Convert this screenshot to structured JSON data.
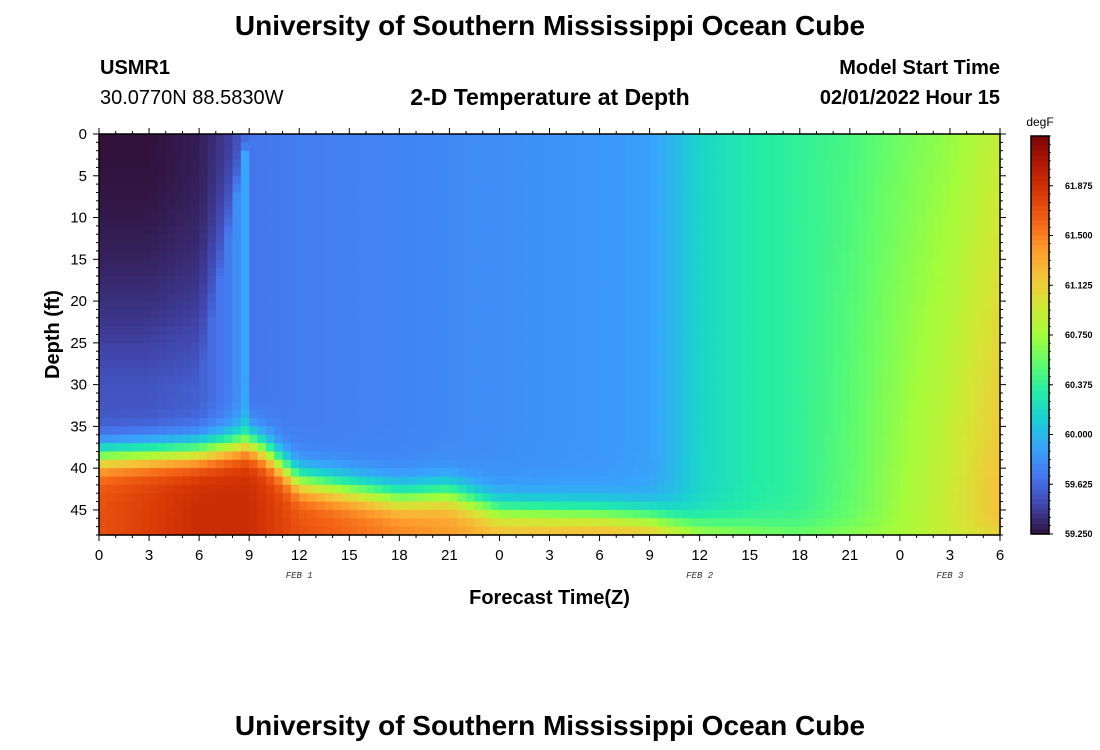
{
  "header": {
    "title": "University of Southern Mississippi Ocean Cube",
    "station_id": "USMR1",
    "coordinates": "30.0770N  88.5830W",
    "plot_title": "2-D Temperature at Depth",
    "model_start_label": "Model Start Time",
    "model_start_value": "02/01/2022 Hour 15"
  },
  "footer": {
    "title": "University of Southern Mississippi Ocean Cube"
  },
  "chart_data": {
    "type": "heatmap",
    "title": "2-D Temperature at Depth",
    "xlabel": "Forecast Time(Z)",
    "ylabel": "Depth (ft)",
    "x_ticks": [
      "0",
      "3",
      "6",
      "9",
      "12",
      "15",
      "18",
      "21",
      "0",
      "3",
      "6",
      "9",
      "12",
      "15",
      "18",
      "21",
      "0",
      "3",
      "6"
    ],
    "x_hours_range": [
      0,
      54
    ],
    "date_labels": [
      {
        "label": "FEB 1",
        "hour": 12
      },
      {
        "label": "FEB 2",
        "hour": 36
      },
      {
        "label": "FEB 3",
        "hour": 51
      }
    ],
    "y_ticks": [
      0,
      5,
      10,
      15,
      20,
      25,
      30,
      35,
      40,
      45
    ],
    "ylim": [
      0,
      48
    ],
    "y_inverted": true,
    "colorbar": {
      "unit": "degF",
      "min": 59.25,
      "max": 62.25,
      "ticks": [
        "59.250",
        "59.625",
        "60.000",
        "60.375",
        "60.750",
        "61.125",
        "61.500",
        "61.875"
      ],
      "colors": [
        "#30123b",
        "#4145ab",
        "#4675ed",
        "#39a2fc",
        "#1bcfd4",
        "#24eca6",
        "#61fc6c",
        "#a4fc3b",
        "#d1e834",
        "#f3c63a",
        "#fe9b2d",
        "#f36315",
        "#d93806",
        "#b11901",
        "#7a0402"
      ]
    },
    "grid": false,
    "description_of_field": {
      "surface_hours": [
        0,
        3,
        6,
        8,
        9,
        12,
        18,
        24,
        30,
        33,
        34.5,
        36,
        39,
        45,
        51,
        54
      ],
      "surface_temps_degF": [
        59.25,
        59.25,
        59.3,
        59.45,
        59.68,
        59.72,
        59.75,
        59.8,
        59.84,
        59.88,
        60.0,
        60.15,
        60.3,
        60.45,
        60.7,
        60.9
      ],
      "bottom_hours": [
        0,
        6,
        9,
        12,
        18,
        21,
        24,
        30,
        33,
        36,
        42,
        48,
        54
      ],
      "bottom_temps_degF": [
        61.7,
        61.9,
        61.9,
        61.7,
        61.5,
        61.4,
        61.3,
        61.4,
        61.4,
        61.0,
        60.8,
        60.8,
        60.9
      ],
      "interface_hours": [
        0,
        6,
        9,
        10,
        12,
        18,
        21,
        24,
        30,
        33,
        36,
        42,
        48,
        54
      ],
      "interface_depth_ft": [
        38.5,
        38,
        37,
        38,
        41.5,
        43.5,
        43,
        45,
        45.5,
        46,
        47,
        48,
        48,
        48
      ]
    }
  }
}
